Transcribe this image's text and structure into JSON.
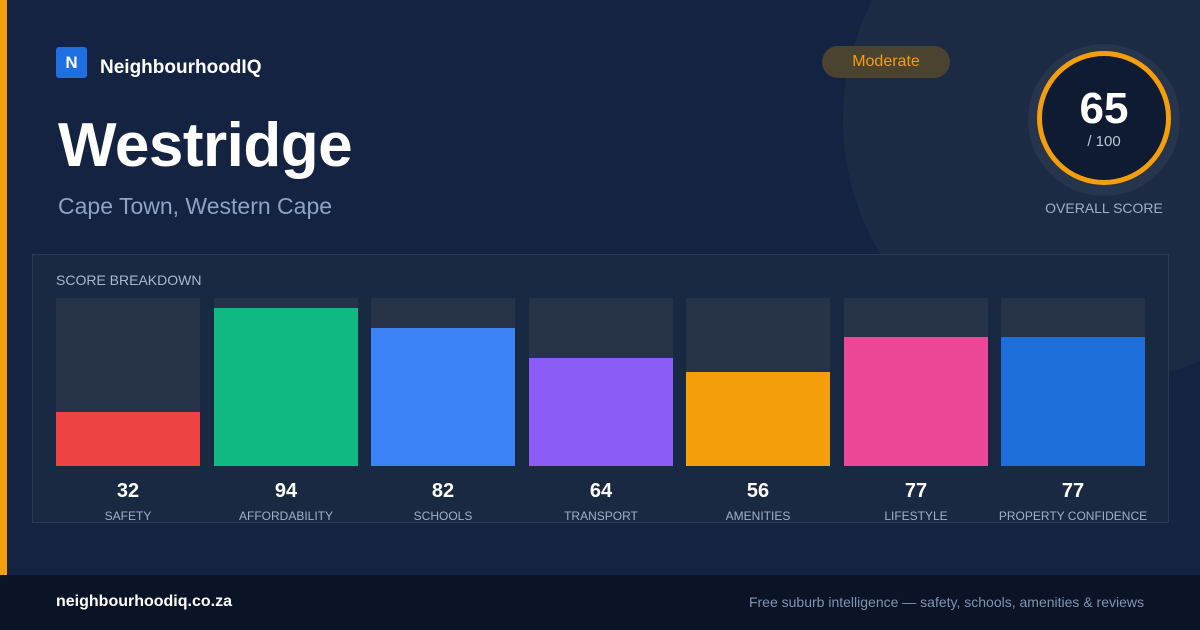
{
  "brand": {
    "mark": "N",
    "name": "NeighbourhoodIQ",
    "accent_color": "#f59e0b"
  },
  "badge": {
    "label": "Moderate",
    "color": "#f59e0b"
  },
  "suburb": {
    "name": "Westridge",
    "location": "Cape Town, Western Cape"
  },
  "overall": {
    "score": "65",
    "max_label": "/ 100",
    "label": "OVERALL SCORE",
    "fraction": 0.65
  },
  "breakdown": {
    "title": "SCORE BREAKDOWN",
    "max": 100,
    "items": [
      {
        "value": 32,
        "label": "SAFETY",
        "color": "#ef4444"
      },
      {
        "value": 94,
        "label": "AFFORDABILITY",
        "color": "#10b981"
      },
      {
        "value": 82,
        "label": "SCHOOLS",
        "color": "#3b82f6"
      },
      {
        "value": 64,
        "label": "TRANSPORT",
        "color": "#8b5cf6"
      },
      {
        "value": 56,
        "label": "AMENITIES",
        "color": "#f59e0b"
      },
      {
        "value": 77,
        "label": "LIFESTYLE",
        "color": "#ec4899"
      },
      {
        "value": 77,
        "label": "PROPERTY CONFIDENCE",
        "color": "#1e6fd9"
      }
    ]
  },
  "footer": {
    "url": "neighbourhoodiq.co.za",
    "tagline": "Free suburb intelligence — safety, schools, amenities & reviews"
  }
}
